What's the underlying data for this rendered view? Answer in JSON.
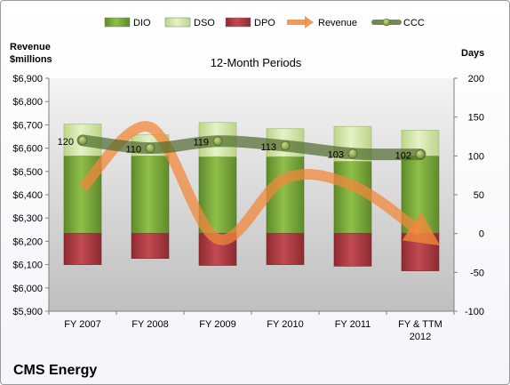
{
  "chart_data": {
    "type": "bar",
    "title": "12-Month Periods",
    "company": "CMS Energy",
    "ylabel_left": "Revenue $millions",
    "ylabel_right": "Days",
    "categories": [
      "FY 2007",
      "FY 2008",
      "FY 2009",
      "FY 2010",
      "FY 2011",
      "FY & TTM 2012"
    ],
    "left_axis": {
      "min": 5900,
      "max": 6900,
      "step": 100,
      "prefix": "$"
    },
    "right_axis": {
      "min": -100,
      "max": 200,
      "step": 50
    },
    "grid": false,
    "legend_position": "top",
    "series": [
      {
        "name": "DIO",
        "type": "bar-stacked",
        "axis": "right",
        "color": "#7aa63c",
        "values": [
          100,
          100,
          99,
          99,
          93,
          100
        ]
      },
      {
        "name": "DSO",
        "type": "bar-stacked",
        "axis": "right",
        "color": "#d3e6a7",
        "values": [
          41,
          27,
          44,
          36,
          45,
          33
        ]
      },
      {
        "name": "DPO",
        "type": "bar-negative",
        "axis": "right",
        "color": "#b03c43",
        "values": [
          -40,
          -32,
          -41,
          -40,
          -42,
          -48
        ]
      },
      {
        "name": "Revenue",
        "type": "smooth-line",
        "axis": "left",
        "color": "#f0883c",
        "values": [
          6430,
          6690,
          6210,
          6470,
          6440,
          6240
        ]
      },
      {
        "name": "CCC",
        "type": "line",
        "axis": "right",
        "color": "#4f6a2c",
        "values": [
          120,
          110,
          119,
          113,
          103,
          102
        ]
      }
    ]
  }
}
